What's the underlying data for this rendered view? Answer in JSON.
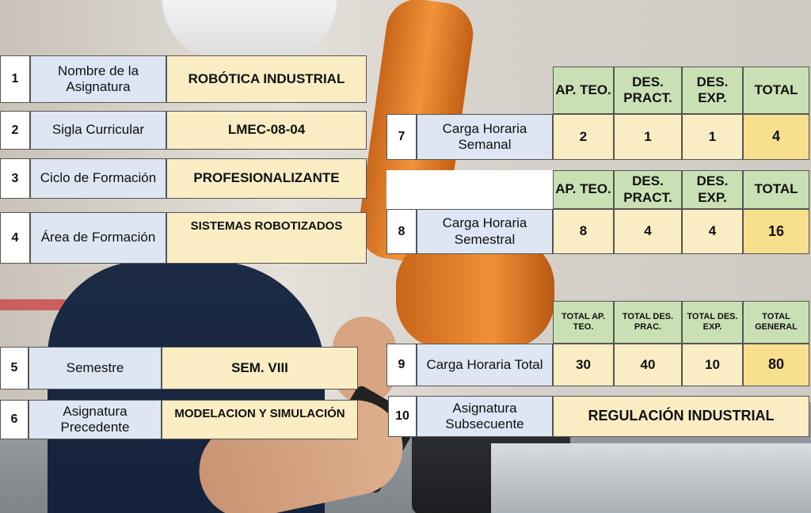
{
  "rows": {
    "r1": {
      "num": "1",
      "label": "Nombre de la Asignatura",
      "value": "ROBÓTICA INDUSTRIAL"
    },
    "r2": {
      "num": "2",
      "label": "Sigla Curricular",
      "value": "LMEC-08-04"
    },
    "r3": {
      "num": "3",
      "label": "Ciclo de Formación",
      "value": "PROFESIONALIZANTE"
    },
    "r4": {
      "num": "4",
      "label": "Área de Formación",
      "value": "SISTEMAS ROBOTIZADOS"
    },
    "r5": {
      "num": "5",
      "label": "Semestre",
      "value": "SEM. VIII"
    },
    "r6": {
      "num": "6",
      "label": "Asignatura Precedente",
      "value": "MODELACION Y SIMULACIÓN"
    },
    "r7": {
      "num": "7",
      "label": "Carga Horaria Semanal",
      "headers": [
        "AP. TEO.",
        "DES. PRACT.",
        "DES. EXP.",
        "TOTAL"
      ],
      "values": [
        "2",
        "1",
        "1",
        "4"
      ]
    },
    "r8": {
      "num": "8",
      "label": "Carga Horaria Semestral",
      "headers": [
        "AP. TEO.",
        "DES. PRACT.",
        "DES. EXP.",
        "TOTAL"
      ],
      "values": [
        "8",
        "4",
        "4",
        "16"
      ]
    },
    "r9": {
      "num": "9",
      "label": "Carga Horaria Total",
      "headers": [
        "TOTAL AP. TEO.",
        "TOTAL DES. PRAC.",
        "TOTAL DES. EXP.",
        "TOTAL GENERAL"
      ],
      "values": [
        "30",
        "40",
        "10",
        "80"
      ]
    },
    "r10": {
      "num": "10",
      "label": "Asignatura Subsecuente",
      "value": "REGULACIÓN INDUSTRIAL"
    }
  },
  "colors": {
    "label_bg": "#dde6f2",
    "value_bg": "#faedc4",
    "header_bg": "#c9e0b4",
    "total_bg": "#f7df8d"
  }
}
